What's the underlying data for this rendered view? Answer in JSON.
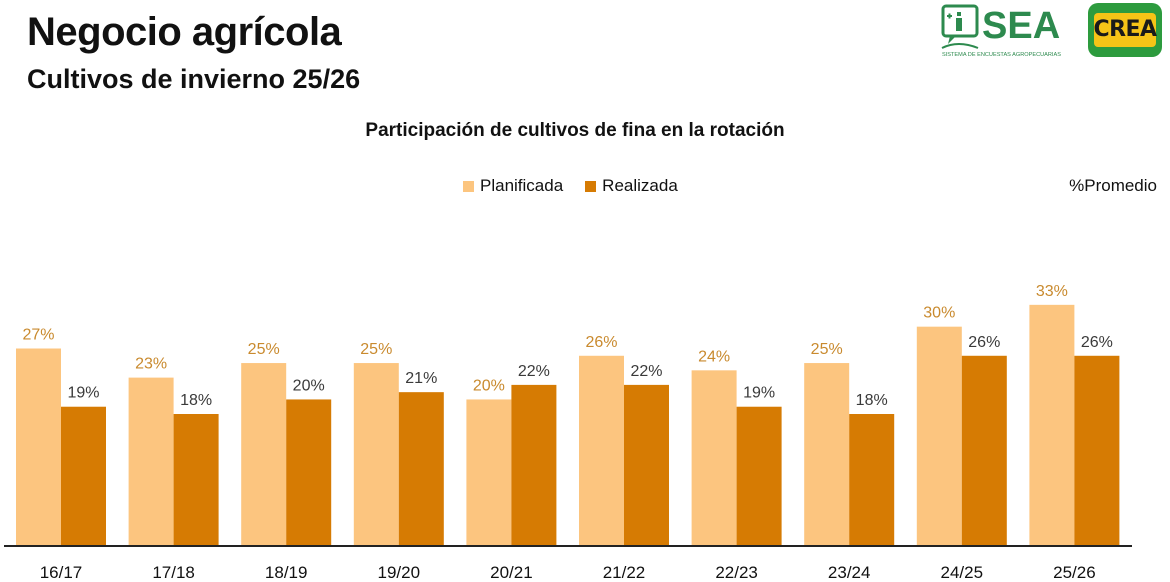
{
  "header": {
    "title": "Negocio agrícola",
    "subtitle": "Cultivos de invierno 25/26"
  },
  "logos": {
    "sea_text": "SEA",
    "sea_caption": "SISTEMA DE ENCUESTAS AGROPECUARIAS",
    "crea_text": "CREA",
    "sea_color": "#2d8a4e",
    "crea_bg": "#2d9b3e",
    "crea_fg": "#f6c417"
  },
  "note": "%Promedio",
  "colors": {
    "planificada": "#fcc57f",
    "realizada": "#d67b03",
    "label_light": "#c98a2e",
    "label_dark": "#3a3a3a"
  },
  "chart_data": {
    "type": "bar",
    "title": "Participación de cultivos de fina en la rotación",
    "legend_position": "top",
    "grid": false,
    "ylim": [
      0,
      36
    ],
    "categories": [
      "16/17",
      "17/18",
      "18/19",
      "19/20",
      "20/21",
      "21/22",
      "22/23",
      "23/24",
      "24/25",
      "25/26"
    ],
    "series": [
      {
        "name": "Planificada",
        "values": [
          27,
          23,
          25,
          25,
          20,
          26,
          24,
          25,
          30,
          33
        ],
        "labels": [
          "27%",
          "23%",
          "25%",
          "25%",
          "20%",
          "26%",
          "24%",
          "25%",
          "30%",
          "33%"
        ]
      },
      {
        "name": "Realizada",
        "values": [
          19,
          18,
          20,
          21,
          22,
          22,
          19,
          18,
          26,
          26
        ],
        "labels": [
          "19%",
          "18%",
          "20%",
          "21%",
          "22%",
          "22%",
          "19%",
          "18%",
          "26%",
          "26%"
        ]
      }
    ]
  }
}
